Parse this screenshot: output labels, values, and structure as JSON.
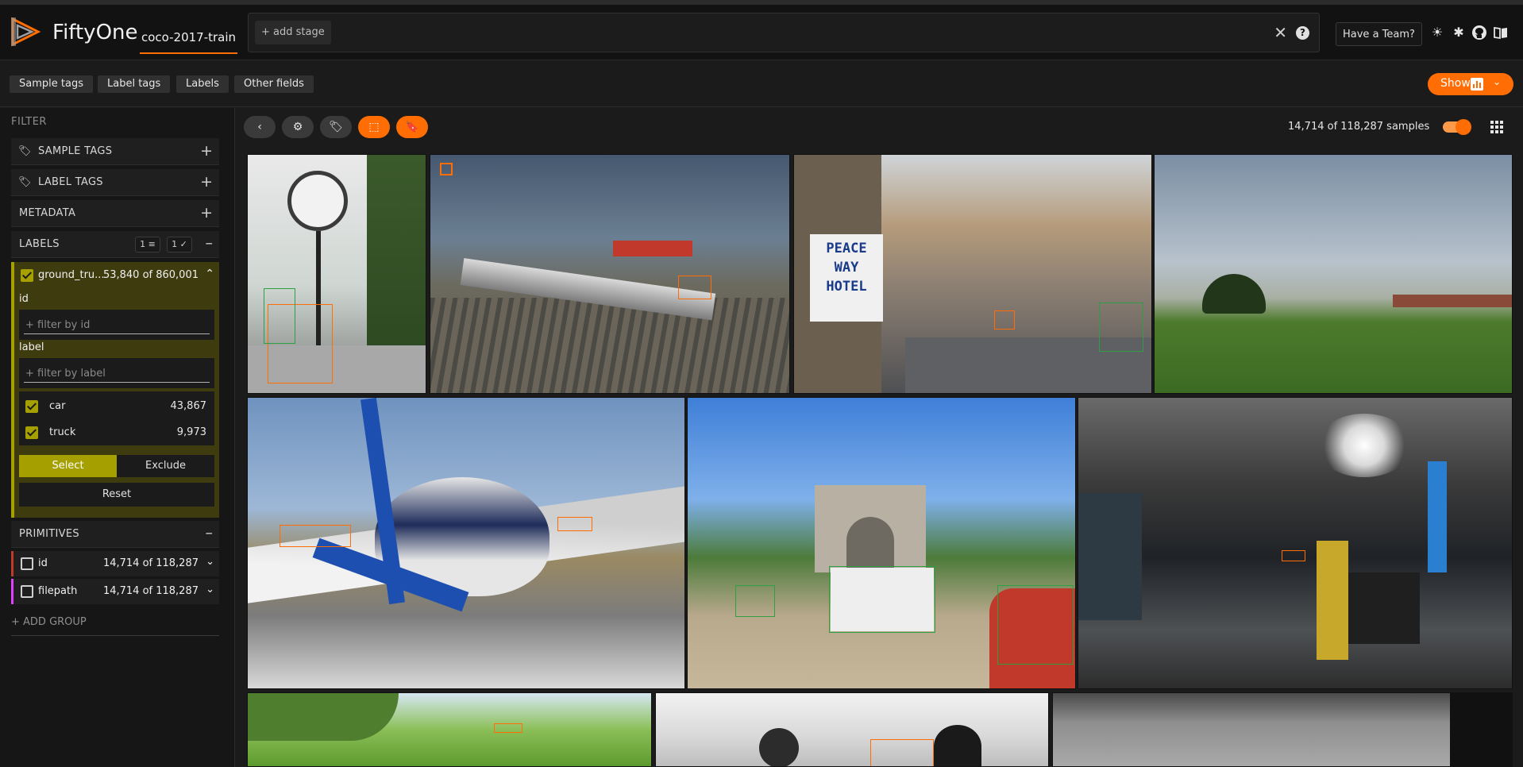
{
  "app": {
    "brand": "FiftyOne",
    "dataset": "coco-2017-train"
  },
  "view_bar": {
    "add_stage": "+ add stage",
    "close": "✕",
    "help": "?"
  },
  "header": {
    "have_team": "Have a Team?"
  },
  "tabs": [
    {
      "label": "Sample tags"
    },
    {
      "label": "Label tags"
    },
    {
      "label": "Labels"
    },
    {
      "label": "Other fields"
    }
  ],
  "show_button": {
    "label": "Show",
    "chevron": "⌄"
  },
  "sidebar": {
    "filter_title": "FILTER",
    "groups": [
      {
        "title": "SAMPLE TAGS",
        "icon": "tag-icon"
      },
      {
        "title": "LABEL TAGS",
        "icon": "tag-icon"
      },
      {
        "title": "METADATA"
      },
      {
        "title": "LABELS",
        "pill_filter": "1",
        "pill_visible": "1"
      }
    ],
    "labels_field": {
      "name": "ground_tru...",
      "count": "53,840 of 860,001",
      "id_label": "id",
      "id_placeholder": "+ filter by id",
      "label_label": "label",
      "label_placeholder": "+ filter by label",
      "values": [
        {
          "name": "car",
          "count": "43,867"
        },
        {
          "name": "truck",
          "count": "9,973"
        }
      ],
      "select": "Select",
      "exclude": "Exclude",
      "reset": "Reset"
    },
    "primitives_title": "PRIMITIVES",
    "primitives": [
      {
        "name": "id",
        "count": "14,714 of 118,287",
        "color": "#c0392b"
      },
      {
        "name": "filepath",
        "count": "14,714 of 118,287",
        "color": "#e040fb"
      }
    ],
    "add_group": "+ ADD GROUP"
  },
  "toolbar": {
    "sample_count": "14,714 of 118,287 samples"
  },
  "colors": {
    "accent": "#ff6d04",
    "label_field": "#a5a000"
  }
}
